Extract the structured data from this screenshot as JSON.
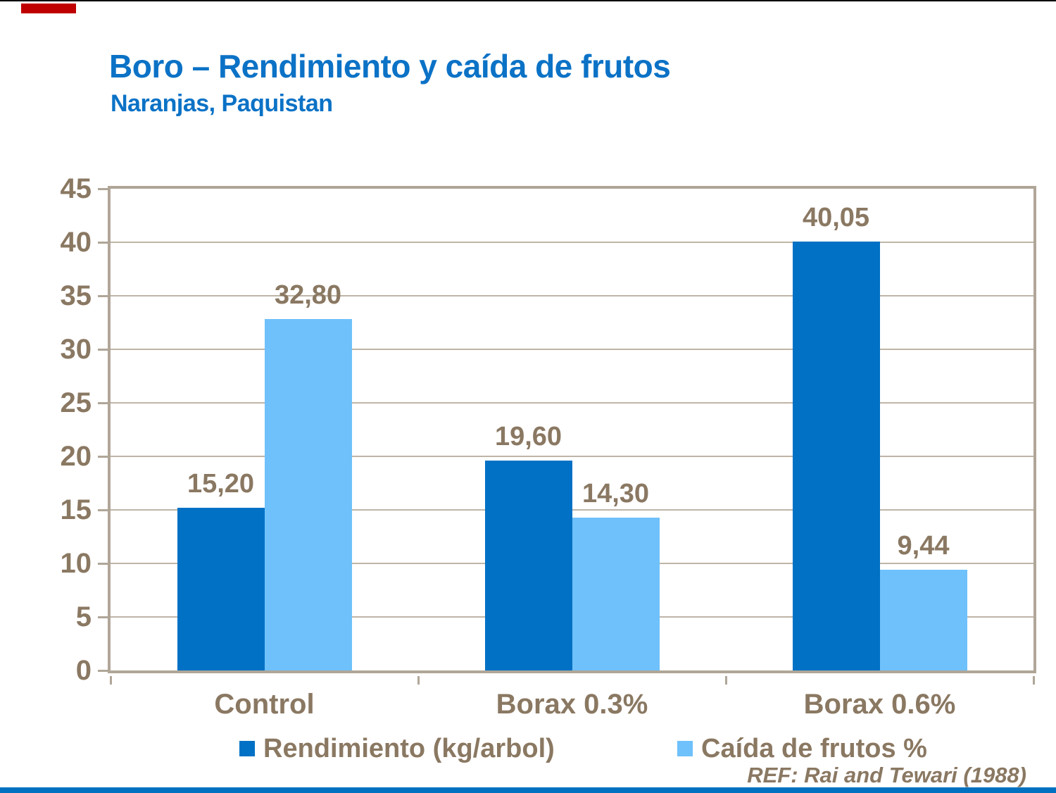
{
  "header": {
    "title": "Boro – Rendimiento y caída de frutos",
    "subtitle": "Naranjas, Paquistan",
    "color": "#0B72C6"
  },
  "chart_data": {
    "type": "bar",
    "categories": [
      "Control",
      "Borax 0.3%",
      "Borax 0.6%"
    ],
    "series": [
      {
        "name": "Rendimiento (kg/arbol)",
        "color": "#0071C5",
        "values": [
          15.2,
          19.6,
          40.05
        ],
        "value_labels": [
          "15,20",
          "19,60",
          "40,05"
        ]
      },
      {
        "name": "Caída de frutos %",
        "color": "#6EC1FB",
        "values": [
          32.8,
          14.3,
          9.44
        ],
        "value_labels": [
          "32,80",
          "14,30",
          "9,44"
        ]
      }
    ],
    "ylim": [
      0,
      45
    ],
    "ytick_step": 5,
    "grid": true,
    "legend_position": "bottom",
    "text_color": "#8A7862",
    "gridline_color": "#BFB5A7",
    "frame_color": "#B0A698"
  },
  "footer": {
    "ref": "REF: Rai and Tewari (1988)"
  },
  "decorations": {
    "top_line_color": "#000000",
    "red_accent_color": "#C00000",
    "bottom_rule_color": "#0070C0"
  }
}
